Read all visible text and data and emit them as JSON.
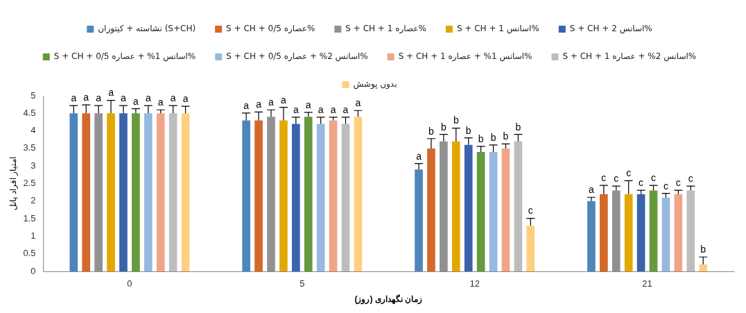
{
  "chart_data": {
    "type": "bar",
    "xlabel": "زمان نگهداری (روز)",
    "ylabel": "امتیاز افراد پانل",
    "categories": [
      "0",
      "5",
      "12",
      "21"
    ],
    "ylim": [
      0,
      5
    ],
    "yticks": [
      0,
      0.5,
      1,
      1.5,
      2,
      2.5,
      3,
      3.5,
      4,
      4.5,
      5
    ],
    "grid": false,
    "legend": "top",
    "series": [
      {
        "name": "نشاسته + کیتوزان (S+CH)",
        "color": "#4e86bc",
        "values": [
          4.5,
          4.3,
          2.9,
          2.0
        ],
        "errors": [
          [
            4.5,
            4.72
          ],
          [
            4.3,
            4.51
          ],
          [
            2.9,
            3.07
          ],
          [
            2.0,
            2.11
          ]
        ],
        "value_labels": [
          "a",
          "a",
          "a",
          "a"
        ]
      },
      {
        "name": "S + CH + عصاره 0/5%",
        "color": "#d4692a",
        "values": [
          4.5,
          4.3,
          3.5,
          2.2
        ],
        "errors": [
          [
            4.5,
            4.74
          ],
          [
            4.3,
            4.54
          ],
          [
            3.5,
            3.78
          ],
          [
            2.2,
            2.45
          ]
        ],
        "value_labels": [
          "a",
          "a",
          "b",
          "c"
        ]
      },
      {
        "name": "S + CH + عصاره 1%",
        "color": "#919191",
        "values": [
          4.5,
          4.4,
          3.7,
          2.3
        ],
        "errors": [
          [
            4.5,
            4.72
          ],
          [
            4.4,
            4.6
          ],
          [
            3.7,
            3.9
          ],
          [
            2.3,
            2.43
          ]
        ],
        "value_labels": [
          "a",
          "a",
          "b",
          "c"
        ]
      },
      {
        "name": "S + CH + اسانس 1%",
        "color": "#e3a800",
        "values": [
          4.5,
          4.3,
          3.7,
          2.2
        ],
        "errors": [
          [
            4.5,
            4.87
          ],
          [
            4.3,
            4.67
          ],
          [
            3.7,
            4.08
          ],
          [
            2.2,
            2.58
          ]
        ],
        "value_labels": [
          "a",
          "a",
          "b",
          "c"
        ]
      },
      {
        "name": "S + CH + اسانس 2%",
        "color": "#3a62ad",
        "values": [
          4.5,
          4.2,
          3.6,
          2.2
        ],
        "errors": [
          [
            4.5,
            4.72
          ],
          [
            4.2,
            4.39
          ],
          [
            3.6,
            3.8
          ],
          [
            2.2,
            2.31
          ]
        ],
        "value_labels": [
          "a",
          "a",
          "b",
          "c"
        ]
      },
      {
        "name": "S + CH + اسانس 1% + عصاره 0/5%",
        "color": "#659a3d",
        "values": [
          4.5,
          4.4,
          3.4,
          2.3
        ],
        "errors": [
          [
            4.5,
            4.63
          ],
          [
            4.4,
            4.53
          ],
          [
            3.4,
            3.56
          ],
          [
            2.3,
            2.45
          ]
        ],
        "value_labels": [
          "a",
          "a",
          "b",
          "c"
        ]
      },
      {
        "name": "S + CH + اسانس 2% + عصاره 0/5%",
        "color": "#97b8e0",
        "values": [
          4.5,
          4.2,
          3.4,
          2.1
        ],
        "errors": [
          [
            4.5,
            4.72
          ],
          [
            4.2,
            4.39
          ],
          [
            3.4,
            3.6
          ],
          [
            2.1,
            2.22
          ]
        ],
        "value_labels": [
          "a",
          "a",
          "b",
          "c"
        ]
      },
      {
        "name": "S + CH + اسانس 1% + عصاره 1%",
        "color": "#f1a588",
        "values": [
          4.5,
          4.3,
          3.5,
          2.2
        ],
        "errors": [
          [
            4.5,
            4.6
          ],
          [
            4.3,
            4.39
          ],
          [
            3.5,
            3.63
          ],
          [
            2.2,
            2.31
          ]
        ],
        "value_labels": [
          "a",
          "a",
          "b",
          "c"
        ]
      },
      {
        "name": "S + CH + اسانس 2% + عصاره 1%",
        "color": "#bdbdbd",
        "values": [
          4.5,
          4.2,
          3.7,
          2.3
        ],
        "errors": [
          [
            4.5,
            4.72
          ],
          [
            4.2,
            4.39
          ],
          [
            3.7,
            3.9
          ],
          [
            2.3,
            2.43
          ]
        ],
        "value_labels": [
          "a",
          "a",
          "b",
          "c"
        ]
      },
      {
        "name": "بدون پوشش",
        "color": "#ffcf7f",
        "values": [
          4.5,
          4.4,
          1.3,
          0.2
        ],
        "errors": [
          [
            4.5,
            4.7
          ],
          [
            4.4,
            4.58
          ],
          [
            1.3,
            1.51
          ],
          [
            0.2,
            0.41
          ]
        ],
        "value_labels": [
          "a",
          "a",
          "c",
          "b"
        ]
      }
    ]
  }
}
